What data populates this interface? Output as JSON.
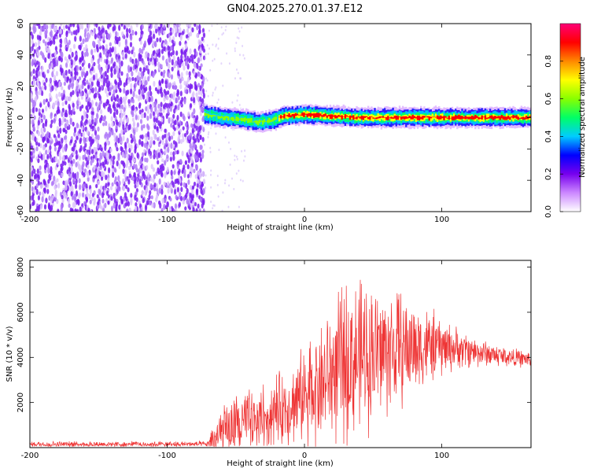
{
  "title": "GN04.2025.270.01.37.E12",
  "chart_data": [
    {
      "type": "heatmap",
      "name": "spectrogram",
      "xlabel": "Height of straight line (km)",
      "ylabel": "Frequency (Hz)",
      "xlim": [
        -200,
        165
      ],
      "ylim": [
        -60,
        60
      ],
      "xticks": [
        -200,
        -100,
        0,
        100
      ],
      "yticks": [
        -60,
        -40,
        -20,
        0,
        20,
        40,
        60
      ],
      "noise_region_end_km": -73,
      "signal_center_hz_by_height": [
        {
          "x": -73,
          "y": 2
        },
        {
          "x": -60,
          "y": 0
        },
        {
          "x": -45,
          "y": -1
        },
        {
          "x": -35,
          "y": -3
        },
        {
          "x": -25,
          "y": -2
        },
        {
          "x": -15,
          "y": 1
        },
        {
          "x": 0,
          "y": 2
        },
        {
          "x": 20,
          "y": 1
        },
        {
          "x": 40,
          "y": 0
        },
        {
          "x": 80,
          "y": 0
        },
        {
          "x": 120,
          "y": 0
        },
        {
          "x": 165,
          "y": 0
        }
      ],
      "colorbar": {
        "label": "Normalized spectral amplitude",
        "range": [
          0,
          1
        ],
        "ticks": [
          0.0,
          0.2,
          0.4,
          0.6,
          0.8
        ],
        "tick_labels": [
          "0.0",
          "0.2",
          "0.4",
          "0.6",
          "0.8"
        ],
        "colormap": [
          "#ffffff",
          "#cc88ff",
          "#7700ee",
          "#0000ff",
          "#00ccff",
          "#00ff66",
          "#88ff00",
          "#ffff00",
          "#ff8800",
          "#ff0000",
          "#ff0077"
        ]
      }
    },
    {
      "type": "line",
      "name": "snr",
      "xlabel": "Height of straight line (km)",
      "ylabel": "SNR (10 * v/v)",
      "xlim": [
        -200,
        165
      ],
      "ylim": [
        0,
        8300
      ],
      "xticks": [
        -200,
        -100,
        0,
        100
      ],
      "yticks": [
        2000,
        4000,
        6000,
        8000
      ],
      "color": "#ee3333",
      "envelope": [
        {
          "x": -200,
          "base": 150,
          "amp": 150
        },
        {
          "x": -70,
          "base": 150,
          "amp": 150
        },
        {
          "x": -65,
          "base": 400,
          "amp": 1400
        },
        {
          "x": -50,
          "base": 900,
          "amp": 1600
        },
        {
          "x": -30,
          "base": 1400,
          "amp": 1800
        },
        {
          "x": -10,
          "base": 1900,
          "amp": 2000
        },
        {
          "x": 10,
          "base": 2800,
          "amp": 3000
        },
        {
          "x": 30,
          "base": 3800,
          "amp": 4200
        },
        {
          "x": 50,
          "base": 4200,
          "amp": 3800
        },
        {
          "x": 70,
          "base": 4400,
          "amp": 3000
        },
        {
          "x": 90,
          "base": 4500,
          "amp": 2000
        },
        {
          "x": 110,
          "base": 4400,
          "amp": 1100
        },
        {
          "x": 130,
          "base": 4200,
          "amp": 700
        },
        {
          "x": 150,
          "base": 4000,
          "amp": 500
        },
        {
          "x": 165,
          "base": 3900,
          "amp": 400
        }
      ]
    }
  ]
}
